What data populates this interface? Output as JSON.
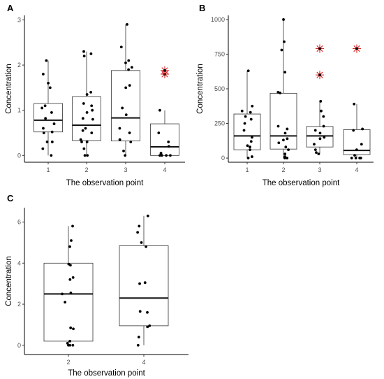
{
  "chart_data": [
    {
      "type": "box",
      "panel_label": "A",
      "xlabel": "The observation point",
      "ylabel": "Concentration",
      "ylim": [
        -0.15,
        3.1
      ],
      "yticks": [
        0,
        1,
        2,
        3
      ],
      "categories": [
        "1",
        "2",
        "3",
        "4"
      ],
      "boxes": [
        {
          "q1": 0.52,
          "median": 0.78,
          "q3": 1.15,
          "whisker_low": 0.0,
          "whisker_high": 2.1
        },
        {
          "q1": 0.33,
          "median": 0.67,
          "q3": 1.3,
          "whisker_low": 0.0,
          "whisker_high": 2.3
        },
        {
          "q1": 0.32,
          "median": 0.83,
          "q3": 1.88,
          "whisker_low": 0.0,
          "whisker_high": 2.9
        },
        {
          "q1": 0.0,
          "median": 0.19,
          "q3": 0.7,
          "whisker_low": 0.0,
          "whisker_high": 1.0
        }
      ],
      "points": [
        [
          0.0,
          0.15,
          0.3,
          0.3,
          0.5,
          0.52,
          0.6,
          0.7,
          0.82,
          0.95,
          1.05,
          1.1,
          1.5,
          1.6,
          1.8,
          2.1
        ],
        [
          0.0,
          0.0,
          0.15,
          0.3,
          0.3,
          0.35,
          0.5,
          0.55,
          0.6,
          0.8,
          0.82,
          0.95,
          1.0,
          1.1,
          1.15,
          1.35,
          1.4,
          2.2,
          2.25,
          2.3
        ],
        [
          0.0,
          0.1,
          0.3,
          0.35,
          0.5,
          0.6,
          0.9,
          1.05,
          1.5,
          1.55,
          1.9,
          1.95,
          2.05,
          2.1,
          2.4,
          2.9
        ],
        [
          0.0,
          0.0,
          0.0,
          0.0,
          0.05,
          0.2,
          0.3,
          0.5,
          1.0
        ]
      ],
      "outliers": [
        [],
        [],
        [],
        [
          1.8,
          1.88
        ]
      ]
    },
    {
      "type": "box",
      "panel_label": "B",
      "xlabel": "The observation point",
      "ylabel": "Concentration",
      "ylim": [
        -30,
        1030
      ],
      "yticks": [
        0,
        250,
        500,
        750,
        1000
      ],
      "categories": [
        "1",
        "2",
        "3",
        "4"
      ],
      "boxes": [
        {
          "q1": 60,
          "median": 160,
          "q3": 318,
          "whisker_low": 0,
          "whisker_high": 630
        },
        {
          "q1": 65,
          "median": 160,
          "q3": 468,
          "whisker_low": 0,
          "whisker_high": 1000
        },
        {
          "q1": 80,
          "median": 160,
          "q3": 228,
          "whisker_low": 30,
          "whisker_high": 410
        },
        {
          "q1": 25,
          "median": 55,
          "q3": 205,
          "whisker_low": 0,
          "whisker_high": 390
        }
      ],
      "points": [
        [
          0,
          10,
          60,
          80,
          90,
          120,
          150,
          200,
          250,
          280,
          300,
          330,
          340,
          375,
          630
        ],
        [
          0,
          0,
          10,
          30,
          60,
          80,
          110,
          130,
          140,
          180,
          210,
          230,
          470,
          475,
          620,
          780,
          840,
          1000
        ],
        [
          30,
          40,
          60,
          100,
          140,
          150,
          180,
          200,
          230,
          300,
          340,
          410
        ],
        [
          0,
          0,
          0,
          0,
          20,
          60,
          100,
          200,
          210,
          390
        ]
      ],
      "outliers": [
        [],
        [],
        [
          600,
          790
        ],
        [
          790
        ]
      ]
    },
    {
      "type": "box",
      "panel_label": "C",
      "xlabel": "The observation point",
      "ylabel": "Concentration",
      "ylim": [
        -0.45,
        6.7
      ],
      "yticks": [
        0,
        2,
        4,
        6
      ],
      "categories": [
        "2",
        "4"
      ],
      "boxes": [
        {
          "q1": 0.2,
          "median": 2.5,
          "q3": 4.0,
          "whisker_low": 0.0,
          "whisker_high": 5.8
        },
        {
          "q1": 0.95,
          "median": 2.3,
          "q3": 4.85,
          "whisker_low": 0.0,
          "whisker_high": 6.3
        }
      ],
      "points": [
        [
          0.0,
          0.0,
          0.0,
          0.1,
          0.2,
          0.8,
          0.85,
          2.1,
          2.5,
          2.55,
          3.2,
          3.3,
          3.9,
          3.95,
          4.8,
          5.1,
          5.8
        ],
        [
          0.0,
          0.4,
          0.9,
          0.95,
          1.6,
          1.65,
          3.0,
          3.05,
          4.8,
          5.0,
          5.5,
          5.8,
          6.3
        ]
      ],
      "outliers": [
        [],
        []
      ]
    }
  ]
}
